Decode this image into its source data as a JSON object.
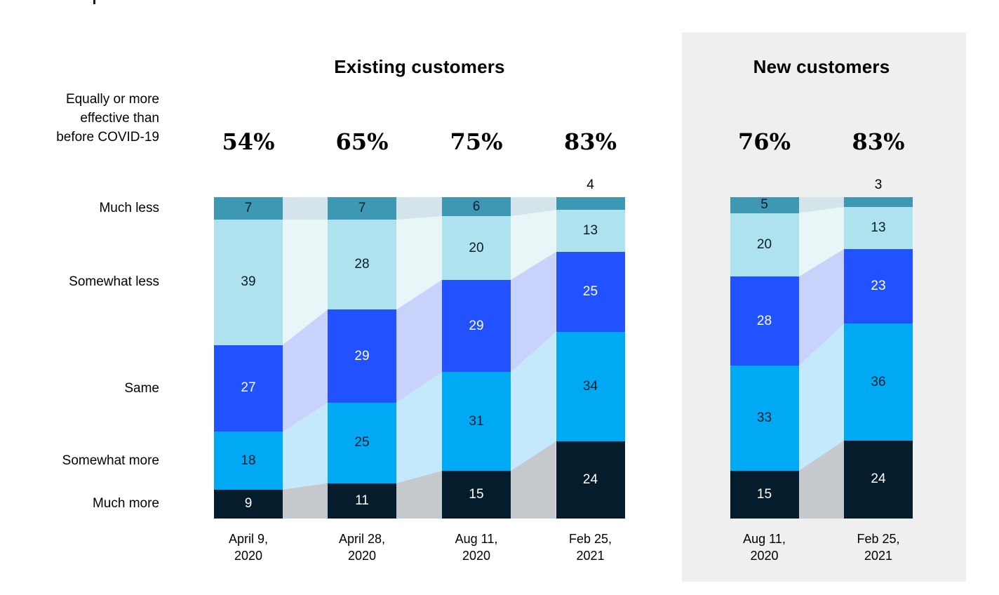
{
  "page": {
    "background": "#FFFFFF"
  },
  "left_axis": {
    "summary_label": "Equally or more\neffective than\nbefore COVID-19",
    "category_labels": [
      "Much less",
      "Somewhat less",
      "Same",
      "Somewhat more",
      "Much more"
    ]
  },
  "chart_data": {
    "type": "bar",
    "stacked": true,
    "unit": "%",
    "orientation": "vertical",
    "categories_legend": [
      "Much less",
      "Somewhat less",
      "Same",
      "Somewhat more",
      "Much more"
    ],
    "segment_colors": [
      "#3E97B3",
      "#AEE2EE",
      "#2251FF",
      "#00A9F4",
      "#051C2C"
    ],
    "connector_colors": [
      "#D3E5EB",
      "#E9F6F8",
      "#C9D2FA",
      "#C5E9FC",
      "#C5C8CD"
    ],
    "segment_text_colors": [
      "#051C2C",
      "#051C2C",
      "#FFFFFF",
      "#051C2C",
      "#FFFFFF"
    ],
    "panel_bg": "#EFEFEF",
    "groups": [
      {
        "title": "Existing customers",
        "highlighted": false,
        "bars": [
          {
            "date": "April 9,\n2020",
            "summary_pct": "54%",
            "values": [
              7,
              39,
              27,
              18,
              9
            ]
          },
          {
            "date": "April 28,\n2020",
            "summary_pct": "65%",
            "values": [
              7,
              28,
              29,
              25,
              11
            ]
          },
          {
            "date": "Aug 11,\n2020",
            "summary_pct": "75%",
            "values": [
              6,
              20,
              29,
              31,
              15
            ]
          },
          {
            "date": "Feb 25,\n2021",
            "summary_pct": "83%",
            "values": [
              4,
              13,
              25,
              34,
              24
            ]
          }
        ]
      },
      {
        "title": "New customers",
        "highlighted": true,
        "bars": [
          {
            "date": "Aug 11,\n2020",
            "summary_pct": "76%",
            "values": [
              5,
              20,
              28,
              33,
              15
            ]
          },
          {
            "date": "Feb 25,\n2021",
            "summary_pct": "83%",
            "values": [
              3,
              13,
              23,
              36,
              24
            ]
          }
        ]
      }
    ]
  }
}
